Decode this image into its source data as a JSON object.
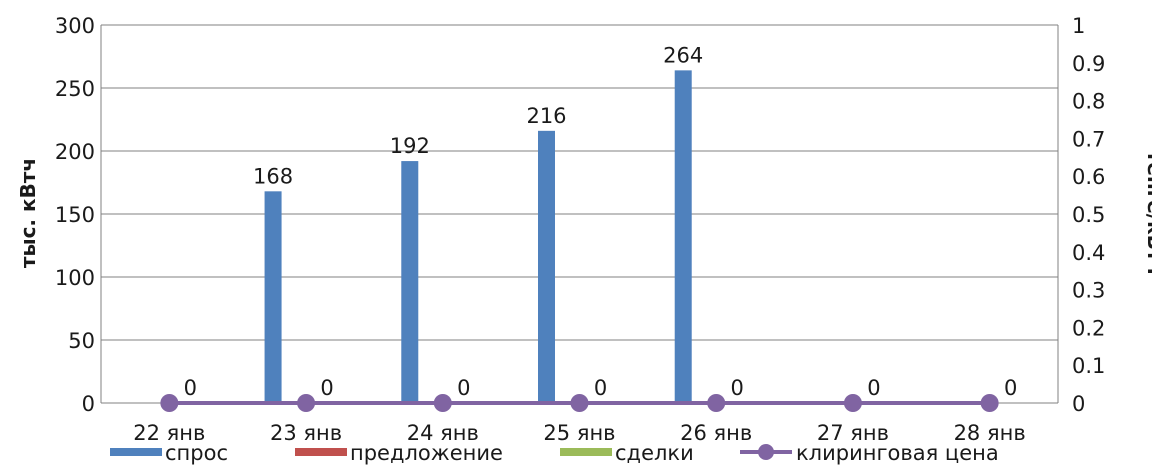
{
  "chart_data": {
    "type": "bar",
    "categories": [
      "22 янв",
      "23 янв",
      "24 янв",
      "25 янв",
      "26 янв",
      "27 янв",
      "28 янв"
    ],
    "series": [
      {
        "name": "спрос",
        "kind": "bar",
        "axis": "left",
        "values": [
          0,
          168,
          192,
          216,
          264,
          0,
          0
        ],
        "color": "#4F81BD"
      },
      {
        "name": "предложение",
        "kind": "bar",
        "axis": "left",
        "values": [
          0,
          0,
          0,
          0,
          0,
          0,
          0
        ],
        "color": "#C0504D"
      },
      {
        "name": "сделки",
        "kind": "bar",
        "axis": "left",
        "values": [
          0,
          0,
          0,
          0,
          0,
          0,
          0
        ],
        "color": "#9BBB59"
      },
      {
        "name": "клиринговая цена",
        "kind": "line",
        "axis": "right",
        "values": [
          0,
          0,
          0,
          0,
          0,
          0,
          0
        ],
        "color": "#8064A2"
      }
    ],
    "bar_data_labels": [
      "",
      "168",
      "192",
      "216",
      "264",
      "",
      ""
    ],
    "line_data_labels": [
      "0",
      "0",
      "0",
      "0",
      "0",
      "0",
      "0"
    ],
    "ylabel": "тыс. кВтч",
    "ylabel_right": "тенге/кВтч",
    "ylim": [
      0,
      300
    ],
    "yticks": [
      "0",
      "50",
      "100",
      "150",
      "200",
      "250",
      "300"
    ],
    "ylim_right": [
      0,
      1
    ],
    "yticks_right": [
      "0",
      "0.1",
      "0.2",
      "0.3",
      "0.4",
      "0.5",
      "0.6",
      "0.7",
      "0.8",
      "0.9",
      "1"
    ],
    "grid": true,
    "legend_position": "bottom"
  }
}
